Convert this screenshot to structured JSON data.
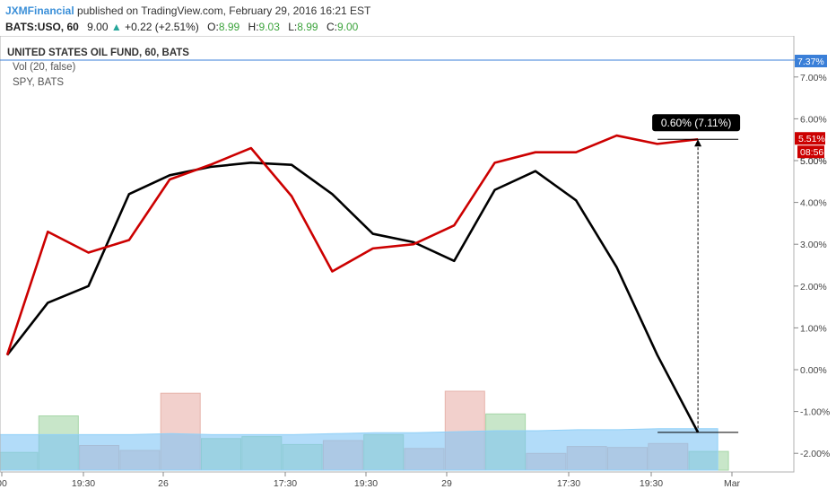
{
  "header": {
    "author": "JXMFinancial",
    "published_text": "published on TradingView.com, February 29, 2016 16:21 EST",
    "symbol": "BATS:USO, 60",
    "last": "9.00",
    "change_arrow": "▲",
    "change": "+0.22 (+2.51%)",
    "open_label": "O:",
    "open": "8.99",
    "high_label": "H:",
    "high": "9.03",
    "low_label": "L:",
    "low": "8.99",
    "close_label": "C:",
    "close": "9.00"
  },
  "legend": {
    "main": "UNITED STATES OIL FUND, 60, BATS",
    "vol": "Vol (20, false)",
    "compare": "SPY, BATS"
  },
  "measure": {
    "text": "0.60% (7.11%)"
  },
  "price_badges": {
    "red_value": "5.51%",
    "red_time": "08:56",
    "blue_value": "7.37%",
    "behind_value": "5.00%"
  },
  "colors": {
    "uso_line": "#000000",
    "spy_line": "#cc0000",
    "badge_red": "#cc0000",
    "badge_blue": "#3a7fd8",
    "vol_ma": "#7fc4f5",
    "vol_up": "#c8e6c9",
    "vol_down": "#f2d0cc"
  },
  "chart_data": {
    "type": "line",
    "y_axis": {
      "unit": "%",
      "ticks": [
        "7.00%",
        "6.00%",
        "5.00%",
        "4.00%",
        "3.00%",
        "2.00%",
        "1.00%",
        "0.00%",
        "-1.00%",
        "-2.00%"
      ],
      "ylim": [
        -2.4,
        7.6
      ]
    },
    "x_axis": {
      "ticks": [
        "00",
        "19:30",
        "26",
        "17:30",
        "19:30",
        "29",
        "17:30",
        "19:30",
        "Mar"
      ]
    },
    "series": [
      {
        "name": "UNITED STATES OIL FUND",
        "color": "#000000",
        "values": [
          0.35,
          1.6,
          2.0,
          4.2,
          4.65,
          4.85,
          4.95,
          4.9,
          4.2,
          3.25,
          3.05,
          2.6,
          4.3,
          4.75,
          4.05,
          2.45,
          0.35,
          -1.5
        ]
      },
      {
        "name": "SPY",
        "color": "#cc0000",
        "values": [
          0.35,
          3.3,
          2.8,
          3.1,
          4.55,
          4.9,
          5.3,
          4.15,
          2.35,
          2.9,
          3.0,
          3.45,
          4.95,
          5.2,
          5.2,
          5.6,
          5.4,
          5.51
        ]
      }
    ],
    "volume": {
      "bars": [
        {
          "v": 0.18,
          "dir": "up"
        },
        {
          "v": 0.55,
          "dir": "up"
        },
        {
          "v": 0.25,
          "dir": "down"
        },
        {
          "v": 0.2,
          "dir": "down"
        },
        {
          "v": 0.78,
          "dir": "down"
        },
        {
          "v": 0.32,
          "dir": "up"
        },
        {
          "v": 0.34,
          "dir": "up"
        },
        {
          "v": 0.26,
          "dir": "up"
        },
        {
          "v": 0.3,
          "dir": "down"
        },
        {
          "v": 0.36,
          "dir": "up"
        },
        {
          "v": 0.22,
          "dir": "down"
        },
        {
          "v": 0.8,
          "dir": "down"
        },
        {
          "v": 0.57,
          "dir": "up"
        },
        {
          "v": 0.17,
          "dir": "down"
        },
        {
          "v": 0.24,
          "dir": "down"
        },
        {
          "v": 0.23,
          "dir": "down"
        },
        {
          "v": 0.27,
          "dir": "down"
        },
        {
          "v": 0.19,
          "dir": "up"
        }
      ],
      "ma": [
        0.36,
        0.36,
        0.36,
        0.36,
        0.37,
        0.36,
        0.36,
        0.36,
        0.37,
        0.38,
        0.38,
        0.39,
        0.4,
        0.4,
        0.41,
        0.41,
        0.42,
        0.42
      ]
    }
  }
}
